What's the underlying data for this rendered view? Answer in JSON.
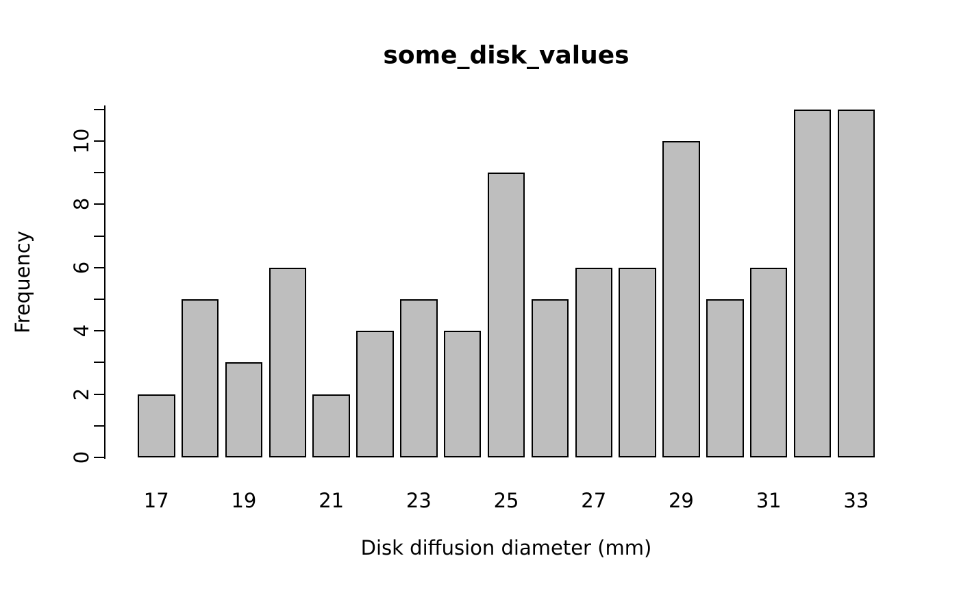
{
  "chart_data": {
    "type": "bar",
    "title": "some_disk_values",
    "xlabel": "Disk diffusion diameter (mm)",
    "ylabel": "Frequency",
    "categories": [
      17,
      18,
      19,
      20,
      21,
      22,
      23,
      24,
      25,
      26,
      27,
      28,
      29,
      30,
      31,
      32,
      33
    ],
    "values": [
      2,
      5,
      3,
      6,
      2,
      4,
      5,
      4,
      9,
      5,
      6,
      6,
      10,
      5,
      6,
      11,
      11
    ],
    "x_tick_labels": [
      "17",
      "19",
      "21",
      "23",
      "25",
      "27",
      "29",
      "31",
      "33"
    ],
    "x_tick_every": 2,
    "y_tick_labels": [
      "0",
      "2",
      "4",
      "6",
      "8",
      "10"
    ],
    "y_tick_label_values": [
      0,
      2,
      4,
      6,
      8,
      10
    ],
    "y_minor_ticks": [
      0,
      1,
      2,
      3,
      4,
      5,
      6,
      7,
      8,
      9,
      10,
      11
    ],
    "ylim": [
      0,
      11
    ],
    "grid": false,
    "legend_position": "none",
    "bar_fill_color": "#bebebe",
    "bar_border_color": "#000000",
    "axis_color": "#000000",
    "background_color": "#ffffff"
  }
}
